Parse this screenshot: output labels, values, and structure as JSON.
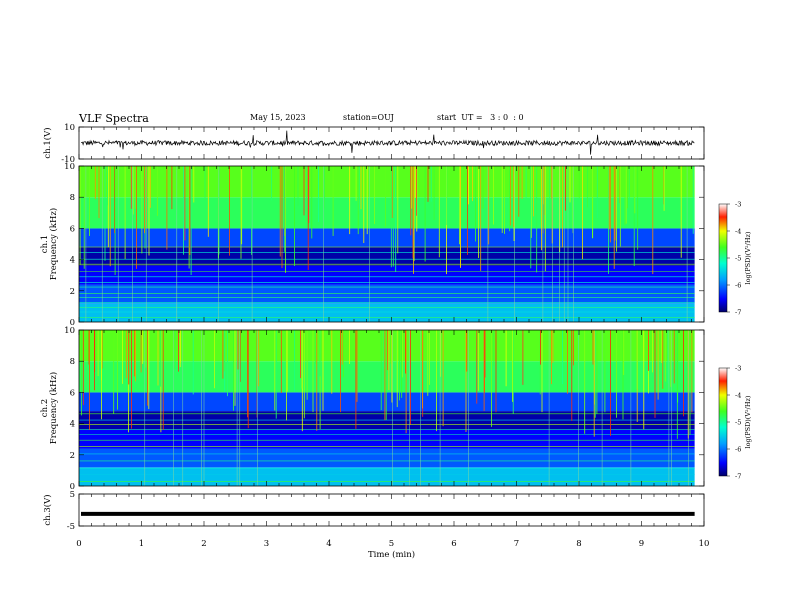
{
  "header": {
    "title": "VLF Spectra",
    "date": "May 15, 2023",
    "station": "station=OUJ",
    "start": "start  UT =   3 : 0  : 0"
  },
  "chart_data": [
    {
      "type": "line",
      "panel": "ch1-waveform",
      "ylabel": "ch.1(V)",
      "ylim": [
        -10,
        10
      ],
      "yticks": [
        -10,
        10
      ],
      "xlim": [
        0,
        10
      ],
      "series": [
        {
          "baseline": 0,
          "noise_amplitude": 1.5,
          "x_end": 9.85
        }
      ]
    },
    {
      "type": "heatmap",
      "panel": "ch1-spectrogram",
      "ylabel": "ch.1\nFrequency (kHz)",
      "ylabel_line1": "ch.1",
      "ylabel_line2": "Frequency (kHz)",
      "ylim": [
        0,
        10
      ],
      "yticks": [
        0,
        2,
        4,
        6,
        8,
        10
      ],
      "xlim": [
        0,
        10
      ],
      "x_end": 9.85,
      "colorbar": {
        "label": "log(PSD)(V²/Hz)",
        "range": [
          -7,
          -3
        ],
        "ticks": [
          -7,
          -6,
          -5,
          -4,
          -3
        ]
      }
    },
    {
      "type": "heatmap",
      "panel": "ch2-spectrogram",
      "ylabel_line1": "ch.2",
      "ylabel_line2": "Frequency (kHz)",
      "ylim": [
        0,
        10
      ],
      "yticks": [
        0,
        2,
        4,
        6,
        8,
        10
      ],
      "xlim": [
        0,
        10
      ],
      "x_end": 9.85,
      "colorbar": {
        "label": "log(PSD)(V²/Hz)",
        "range": [
          -7,
          -3
        ],
        "ticks": [
          -7,
          -6,
          -5,
          -4,
          -3
        ]
      }
    },
    {
      "type": "line",
      "panel": "ch3-waveform",
      "ylabel": "ch.3(V)",
      "ylim": [
        -5,
        5
      ],
      "yticks": [
        -5,
        5
      ],
      "xlim": [
        0,
        10
      ],
      "xticks": [
        0,
        1,
        2,
        3,
        4,
        5,
        6,
        7,
        8,
        9,
        10
      ],
      "xlabel": "Time (min)",
      "series": [
        {
          "baseline": -1.2,
          "x_end": 9.85
        }
      ]
    }
  ]
}
